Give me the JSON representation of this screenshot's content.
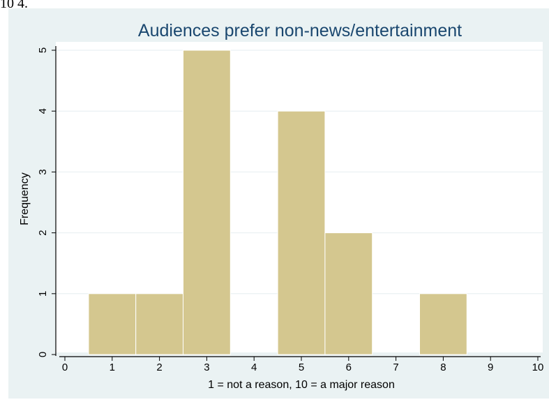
{
  "page": {
    "top_text": "10 4."
  },
  "chart_data": {
    "type": "bar",
    "title": "Audiences prefer non-news/entertainment",
    "xlabel": "1 = not a reason, 10 = a major reason",
    "ylabel": "Frequency",
    "xlim": [
      0,
      10
    ],
    "ylim": [
      0,
      5
    ],
    "x_ticks": [
      "0",
      "1",
      "2",
      "3",
      "4",
      "5",
      "6",
      "7",
      "8",
      "9",
      "10"
    ],
    "y_ticks": [
      "0",
      "1",
      "2",
      "3",
      "4",
      "5"
    ],
    "bins": [
      {
        "x": 1,
        "value": 1
      },
      {
        "x": 2,
        "value": 1
      },
      {
        "x": 3,
        "value": 5
      },
      {
        "x": 5,
        "value": 4
      },
      {
        "x": 6,
        "value": 2
      },
      {
        "x": 8,
        "value": 1
      }
    ],
    "bin_width": 1,
    "grid": "horizontal",
    "colors": {
      "bar_fill": "#d4c78f",
      "bar_stroke": "#ffffff",
      "plot_background": "#ffffff",
      "outer_background": "#eaf2f3",
      "grid": "#e6eef0",
      "title": "#1a476f",
      "axis": "#000000"
    }
  }
}
